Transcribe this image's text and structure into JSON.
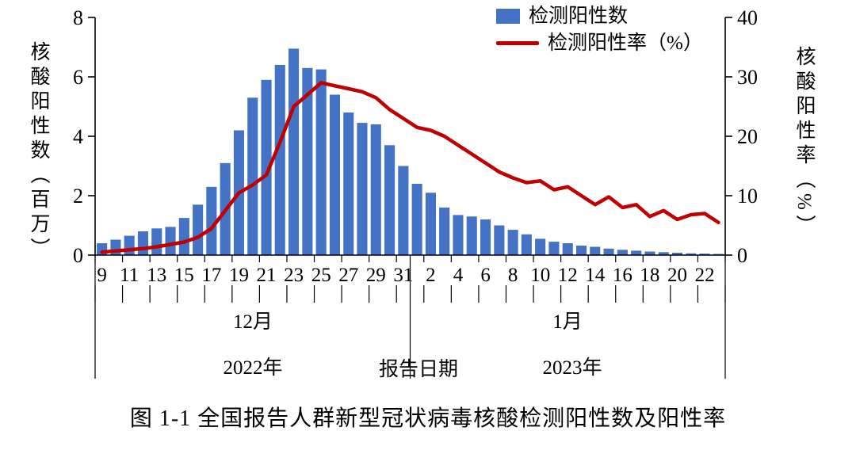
{
  "caption": "图 1-1 全国报告人群新型冠状病毒核酸检测阳性数及阳性率",
  "legend": {
    "bars": "检测阳性数",
    "line": "检测阳性率（%）"
  },
  "axes": {
    "left_title": "核酸阳性数（百万）",
    "right_title": "核酸阳性率（%）",
    "x_title": "报告日期",
    "month_labels": [
      "12月",
      "1月"
    ],
    "year_labels": [
      "2022年",
      "2023年"
    ]
  },
  "colors": {
    "bar": "#4472C4",
    "line": "#C00000",
    "axis": "#000000"
  },
  "chart_data": {
    "type": "bar",
    "title": "",
    "x_label": "报告日期",
    "x": [
      9,
      10,
      11,
      12,
      13,
      14,
      15,
      16,
      17,
      18,
      19,
      20,
      21,
      22,
      23,
      24,
      25,
      26,
      27,
      28,
      29,
      30,
      31,
      1,
      2,
      3,
      4,
      5,
      6,
      7,
      8,
      9,
      10,
      11,
      12,
      13,
      14,
      15,
      16,
      17,
      18,
      19,
      20,
      21,
      22,
      23
    ],
    "x_months": [
      {
        "label": "12月",
        "year": "2022年",
        "count": 23
      },
      {
        "label": "1月",
        "year": "2023年",
        "count": 23
      }
    ],
    "left_axis": {
      "min": 0,
      "max": 8,
      "tick": 2,
      "title": "核酸阳性数（百万）"
    },
    "right_axis": {
      "min": 0,
      "max": 40,
      "tick": 10,
      "title": "核酸阳性率（%）"
    },
    "grid": false,
    "legend_position": "top-right-inside",
    "series": [
      {
        "name": "检测阳性数",
        "type": "bar",
        "axis": "left",
        "unit": "百万",
        "values": [
          0.4,
          0.52,
          0.65,
          0.8,
          0.9,
          0.95,
          1.25,
          1.7,
          2.3,
          3.1,
          4.2,
          5.3,
          5.9,
          6.4,
          6.95,
          6.3,
          6.25,
          5.4,
          4.8,
          4.45,
          4.4,
          3.7,
          3.0,
          2.4,
          2.1,
          1.6,
          1.35,
          1.3,
          1.2,
          1.0,
          0.85,
          0.7,
          0.55,
          0.45,
          0.4,
          0.32,
          0.28,
          0.22,
          0.18,
          0.15,
          0.12,
          0.1,
          0.08,
          0.06,
          0.05,
          0.04
        ]
      },
      {
        "name": "检测阳性率（%）",
        "type": "line",
        "axis": "right",
        "unit": "%",
        "values": [
          0.5,
          0.7,
          0.9,
          1.1,
          1.4,
          1.8,
          2.2,
          3.0,
          4.5,
          7.5,
          10.5,
          11.8,
          13.5,
          19.0,
          25.0,
          27.0,
          29.0,
          28.5,
          28.0,
          27.5,
          26.5,
          24.5,
          23.0,
          21.5,
          21.0,
          20.0,
          18.5,
          17.0,
          15.5,
          14.0,
          13.0,
          12.2,
          12.5,
          11.0,
          11.5,
          10.0,
          8.5,
          9.8,
          8.0,
          8.5,
          6.5,
          7.5,
          6.0,
          6.8,
          7.0,
          5.5
        ]
      }
    ]
  }
}
